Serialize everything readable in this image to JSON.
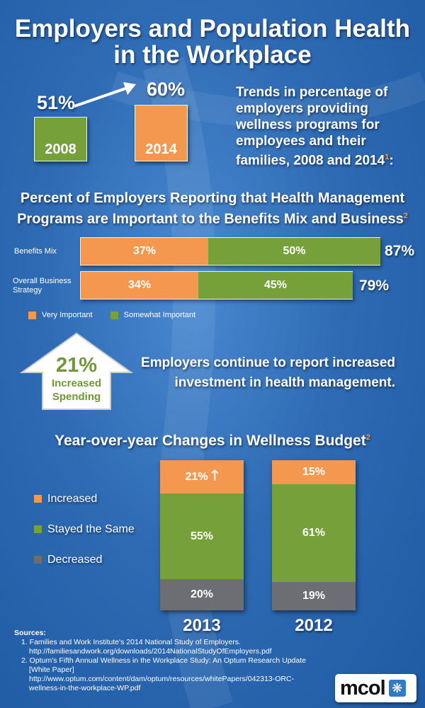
{
  "title": [
    "Employers and Population Health",
    "in the Workplace"
  ],
  "trend": {
    "text": "Trends in percentage of employers providing wellness programs for employees and their families, 2008 and 2014",
    "sup": "1",
    "bars": [
      {
        "year": "2008",
        "value": 51,
        "label": "51%"
      },
      {
        "year": "2014",
        "value": 60,
        "label": "60%"
      }
    ]
  },
  "importance": {
    "title": "Percent of Employers Reporting that Health Management Programs are Important to the Benefits Mix and Business",
    "sup": "2",
    "rows": [
      {
        "label": "Benefits Mix",
        "very": 37,
        "very_label": "37%",
        "some": 50,
        "some_label": "50%",
        "total": "87%"
      },
      {
        "label": "Overall Business Strategy",
        "very": 34,
        "very_label": "34%",
        "some": 45,
        "some_label": "45%",
        "total": "79%"
      }
    ],
    "legend": [
      "Very Important",
      "Somewhat Important"
    ]
  },
  "spending": {
    "value": "21%",
    "line1": "Increased",
    "line2": "Spending",
    "text": "Employers continue to report increased investment in health management."
  },
  "budget": {
    "title": "Year-over-year Changes in Wellness Budget",
    "sup": "2",
    "legend": [
      "Increased",
      "Stayed the Same",
      "Decreased"
    ],
    "years": [
      {
        "year": "2013",
        "increased": 21,
        "same": 55,
        "decreased": 20,
        "labels": [
          "21%",
          "55%",
          "20%"
        ]
      },
      {
        "year": "2012",
        "increased": 15,
        "same": 61,
        "decreased": 19,
        "labels": [
          "15%",
          "61%",
          "19%"
        ]
      }
    ]
  },
  "sources": {
    "heading": "Sources:",
    "items": [
      "1. Families and Work Institute's 2014 National Study of Employers.",
      "http://familiesandwork.org/downloads/2014NationalStudyOfEmployers.pdf",
      "2. Optum's Fifth Annual Wellness in the Workplace Study: An Optum Research Update",
      "[White Paper]",
      "http://www.optum.com/content/dam/optum/resources/whitePapers/042313-ORC-",
      "wellness-in-the-workplace-WP.pdf"
    ]
  },
  "logo": "mcol",
  "chart_data": [
    {
      "type": "bar",
      "title": "Trends in percentage of employers providing wellness programs",
      "categories": [
        "2008",
        "2014"
      ],
      "values": [
        51,
        60
      ]
    },
    {
      "type": "bar",
      "title": "Percent of Employers Reporting that Health Management Programs are Important",
      "categories": [
        "Benefits Mix",
        "Overall Business Strategy"
      ],
      "series": [
        {
          "name": "Very Important",
          "values": [
            37,
            34
          ]
        },
        {
          "name": "Somewhat Important",
          "values": [
            50,
            45
          ]
        }
      ],
      "totals": [
        87,
        79
      ]
    },
    {
      "type": "bar",
      "title": "Year-over-year Changes in Wellness Budget",
      "categories": [
        "2013",
        "2012"
      ],
      "series": [
        {
          "name": "Increased",
          "values": [
            21,
            15
          ]
        },
        {
          "name": "Stayed the Same",
          "values": [
            55,
            61
          ]
        },
        {
          "name": "Decreased",
          "values": [
            20,
            19
          ]
        }
      ]
    }
  ]
}
